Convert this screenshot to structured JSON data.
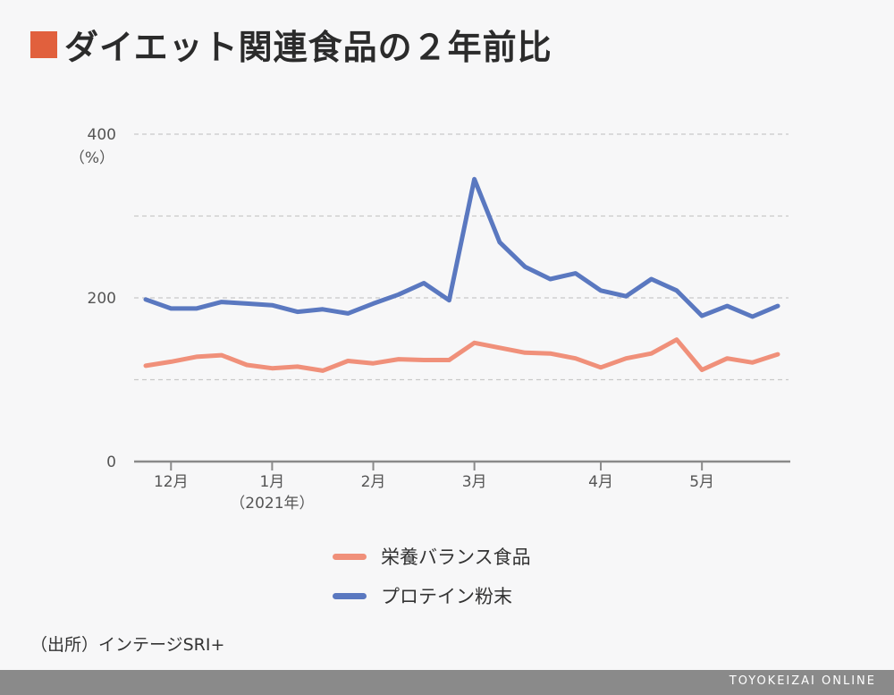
{
  "title": "ダイエット関連食品の２年前比",
  "colors": {
    "accent": "#e1603d",
    "series_orange": "#f0907a",
    "series_blue": "#5a78c0",
    "footer_bg": "#8a8a8a"
  },
  "chart_data": {
    "type": "line",
    "title": "ダイエット関連食品の２年前比",
    "ylabel": "（%）",
    "ylim": [
      0,
      400
    ],
    "y_ticks": [
      {
        "value": 400,
        "label": "400"
      },
      {
        "value": 200,
        "label": "200"
      },
      {
        "value": 0,
        "label": "0"
      }
    ],
    "y_gridlines": [
      400,
      300,
      200,
      100
    ],
    "x_ticks": [
      {
        "index": 1,
        "label": "12月"
      },
      {
        "index": 5,
        "label": "1月",
        "sublabel": "（2021年）"
      },
      {
        "index": 9,
        "label": "2月"
      },
      {
        "index": 13,
        "label": "3月"
      },
      {
        "index": 18,
        "label": "4月"
      },
      {
        "index": 22,
        "label": "5月"
      }
    ],
    "n_points": 26,
    "series": [
      {
        "name": "栄養バランス食品",
        "color": "#f0907a",
        "values": [
          117,
          122,
          128,
          130,
          118,
          114,
          116,
          111,
          123,
          120,
          125,
          124,
          124,
          145,
          139,
          133,
          132,
          126,
          115,
          126,
          132,
          149,
          112,
          126,
          121,
          131
        ]
      },
      {
        "name": "プロテイン粉末",
        "color": "#5a78c0",
        "values": [
          198,
          187,
          187,
          195,
          193,
          191,
          183,
          186,
          181,
          193,
          204,
          218,
          197,
          345,
          268,
          238,
          223,
          230,
          209,
          202,
          223,
          209,
          178,
          190,
          177,
          190
        ]
      }
    ],
    "grid": true,
    "legend_position": "bottom-center"
  },
  "legend": {
    "items": [
      {
        "label": "栄養バランス食品",
        "color": "#f0907a"
      },
      {
        "label": "プロテイン粉末",
        "color": "#5a78c0"
      }
    ]
  },
  "source": "（出所）インテージSRI+",
  "footer": {
    "brand": "TOYOKEIZAI ONLINE"
  }
}
